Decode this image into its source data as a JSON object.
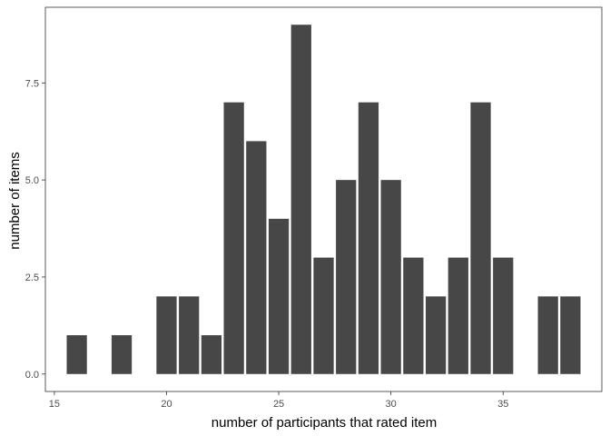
{
  "chart_data": {
    "type": "bar",
    "xlabel": "number of participants that rated item",
    "ylabel": "number of items",
    "x": [
      16,
      18,
      20,
      21,
      22,
      23,
      24,
      25,
      26,
      27,
      28,
      29,
      30,
      31,
      32,
      33,
      34,
      35,
      37,
      38
    ],
    "values": [
      1,
      1,
      2,
      2,
      1,
      7,
      6,
      4,
      9,
      3,
      5,
      7,
      5,
      3,
      2,
      3,
      7,
      3,
      2,
      2
    ],
    "xlim": [
      14.6,
      39.4
    ],
    "ylim": [
      -0.45,
      9.45
    ],
    "xticks": [
      15,
      20,
      25,
      30,
      35
    ],
    "yticks": [
      0.0,
      2.5,
      5.0,
      7.5
    ],
    "xtick_labels": [
      "15",
      "20",
      "25",
      "30",
      "35"
    ],
    "ytick_labels": [
      "0.0",
      "2.5",
      "5.0",
      "7.5"
    ],
    "bar_color": "#474747",
    "grid": false,
    "legend": "none"
  }
}
